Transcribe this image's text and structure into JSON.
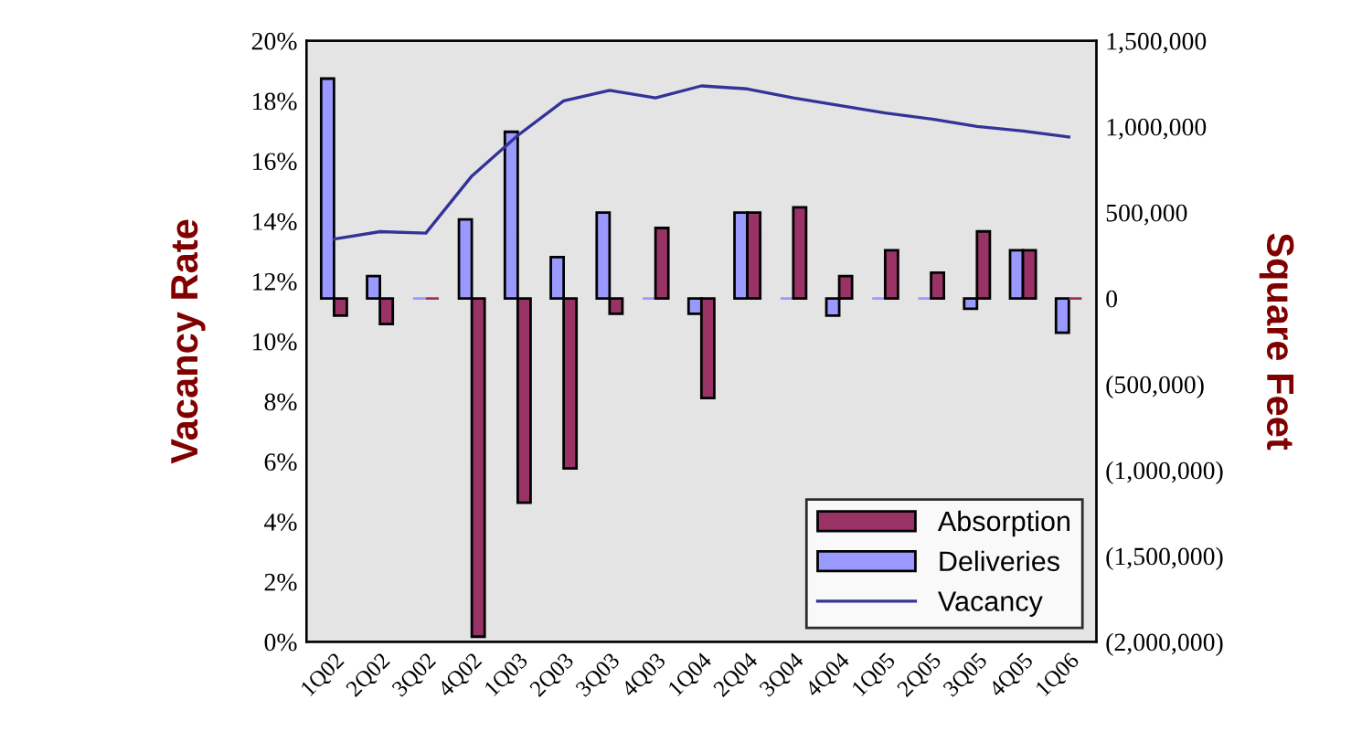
{
  "chart_data": {
    "type": "bar",
    "ylabel": "Vacancy Rate",
    "y2label": "Square Feet",
    "categories": [
      "1Q02",
      "2Q02",
      "3Q02",
      "4Q02",
      "1Q03",
      "2Q03",
      "3Q03",
      "4Q03",
      "1Q04",
      "2Q04",
      "3Q04",
      "4Q04",
      "1Q05",
      "2Q05",
      "3Q05",
      "4Q05",
      "1Q06"
    ],
    "series": [
      {
        "name": "Deliveries",
        "color": "#9999ff",
        "axis": "y2",
        "values": [
          1280000,
          130000,
          0,
          460000,
          970000,
          240000,
          500000,
          0,
          -90000,
          500000,
          0,
          -100000,
          0,
          0,
          -60000,
          280000,
          -200000
        ]
      },
      {
        "name": "Absorption",
        "color": "#993366",
        "axis": "y2",
        "values": [
          -100000,
          -150000,
          0,
          -1970000,
          -1190000,
          -990000,
          -90000,
          410000,
          -580000,
          500000,
          530000,
          130000,
          280000,
          150000,
          390000,
          280000,
          0
        ]
      },
      {
        "name": "Vacancy",
        "type": "line",
        "color": "#333399",
        "values": [
          13.4,
          13.65,
          13.6,
          15.5,
          16.85,
          18.0,
          18.35,
          18.1,
          18.5,
          18.4,
          18.1,
          17.85,
          17.6,
          17.4,
          17.15,
          17.0,
          16.8
        ]
      }
    ],
    "ylim": [
      0,
      20
    ],
    "yticks": [
      {
        "value": 0,
        "label": "0%"
      },
      {
        "value": 2,
        "label": "2%"
      },
      {
        "value": 4,
        "label": "4%"
      },
      {
        "value": 6,
        "label": "6%"
      },
      {
        "value": 8,
        "label": "8%"
      },
      {
        "value": 10,
        "label": "10%"
      },
      {
        "value": 12,
        "label": "12%"
      },
      {
        "value": 14,
        "label": "14%"
      },
      {
        "value": 16,
        "label": "16%"
      },
      {
        "value": 18,
        "label": "18%"
      },
      {
        "value": 20,
        "label": "20%"
      }
    ],
    "y2lim": [
      -2000000,
      1500000
    ],
    "y2ticks": [
      {
        "value": -2000000,
        "label": "(2,000,000)"
      },
      {
        "value": -1500000,
        "label": "(1,500,000)"
      },
      {
        "value": -1000000,
        "label": "(1,000,000)"
      },
      {
        "value": -500000,
        "label": "(500,000)"
      },
      {
        "value": 0,
        "label": "0"
      },
      {
        "value": 500000,
        "label": "500,000"
      },
      {
        "value": 1000000,
        "label": "1,000,000"
      },
      {
        "value": 1500000,
        "label": "1,500,000"
      }
    ],
    "legend": "bottom right",
    "grid": false
  }
}
